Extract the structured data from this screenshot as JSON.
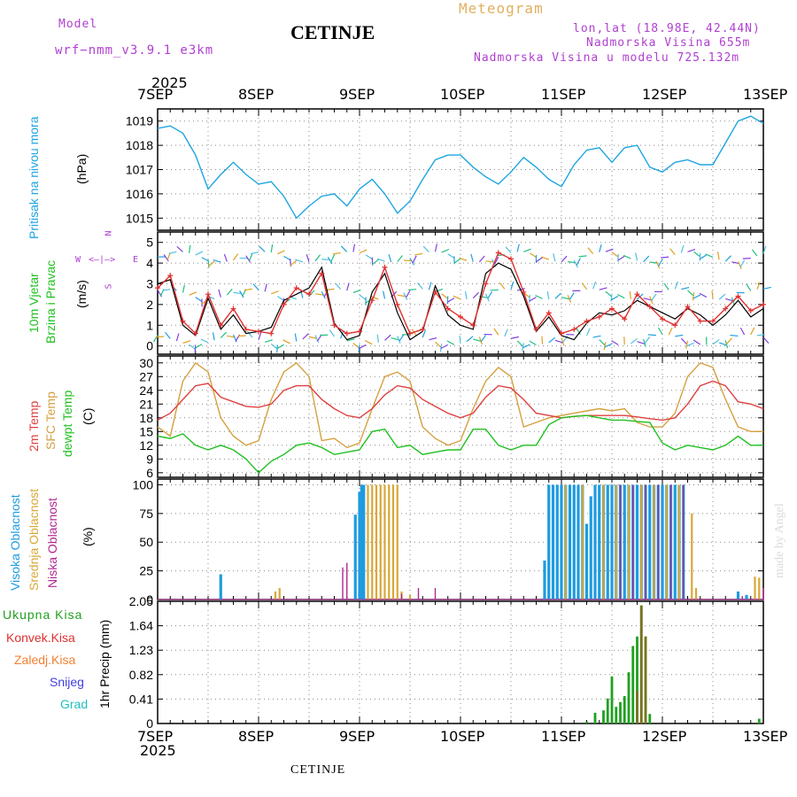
{
  "header": {
    "model_label": "Model",
    "model_name": "wrf−nmm_v3.9.1  e3km",
    "title": "CETINJE",
    "meteogram": "Meteogram",
    "lonlat": "lon,lat (18.98E, 42.44N)",
    "elev": "Nadmorska Visina 655m",
    "elev_model": "Nadmorska Visina u modelu 725.132m",
    "year": "2025"
  },
  "axis": {
    "days": [
      "7SEP",
      "8SEP",
      "9SEP",
      "10SEP",
      "11SEP",
      "12SEP",
      "13SEP"
    ],
    "year_bottom": "2025"
  },
  "labels": {
    "pressure": "Pritisak na nivou mora",
    "pressure_unit": "(hPa)",
    "wind1": "10m Vjetar",
    "wind2": "Brzina i Pravac",
    "wind_unit": "(m/s)",
    "compass": {
      "n": "N",
      "s": "S",
      "w": "W",
      "e": "E"
    },
    "t2m": "2m Temp",
    "tsfc": "SFC Temp",
    "tdew": "dewpt Temp",
    "temp_unit": "(C)",
    "cl_high": "Visoka Oblacnost",
    "cl_mid": "Srednja Oblacnost",
    "cl_low": "Niska Oblacnost",
    "cl_unit": "(%)",
    "precip_axis": "1hr Precip (mm)",
    "leg_total": "Ukupna Kisa",
    "leg_conv": "Konvek.Kisa",
    "leg_frz": "Zaledj.Kisa",
    "leg_snow": "Snijeg",
    "leg_grad": "Grad",
    "footer": "CETINJE",
    "madeby": "made by Angel"
  },
  "colors": {
    "pressure": "#1fa5e0",
    "wind_speed": "#e03030",
    "t2m": "#e04040",
    "tsfc": "#d4a040",
    "tdew": "#20c020",
    "cl_high": "#1e9be0",
    "cl_mid": "#d8a838",
    "cl_low": "#b02890",
    "precip_total": "#20a020",
    "precip_conv": "#e03030",
    "precip_frz": "#f08030",
    "precip_snow": "#4040e0",
    "precip_grad": "#20c0c0"
  },
  "chart_data": [
    {
      "type": "line",
      "title": "Sea level pressure",
      "ylabel": "Pritisak na nivou mora (hPa)",
      "ylim": [
        1014.5,
        1019.5
      ],
      "yticks": [
        1015,
        1016,
        1017,
        1018,
        1019
      ],
      "x_hours": [
        0,
        3,
        6,
        9,
        12,
        15,
        18,
        21,
        24,
        27,
        30,
        33,
        36,
        39,
        42,
        45,
        48,
        51,
        54,
        57,
        60,
        63,
        66,
        69,
        72,
        75,
        78,
        81,
        84,
        87,
        90,
        93,
        96,
        99,
        102,
        105,
        108,
        111,
        114,
        117,
        120,
        123,
        126,
        129,
        132,
        135,
        138,
        141,
        144
      ],
      "values": [
        1018.7,
        1018.8,
        1018.5,
        1017.6,
        1016.2,
        1016.8,
        1017.3,
        1016.8,
        1016.4,
        1016.5,
        1015.9,
        1015.0,
        1015.5,
        1015.9,
        1016.0,
        1015.5,
        1016.2,
        1016.6,
        1016.0,
        1015.2,
        1015.7,
        1016.6,
        1017.4,
        1017.6,
        1017.6,
        1017.1,
        1016.7,
        1016.4,
        1016.9,
        1017.5,
        1017.1,
        1016.6,
        1016.3,
        1017.2,
        1017.8,
        1017.9,
        1017.3,
        1017.9,
        1018.0,
        1017.1,
        1016.9,
        1017.3,
        1017.4,
        1017.2,
        1017.2,
        1018.1,
        1019.0,
        1019.2,
        1018.9
      ]
    },
    {
      "type": "line",
      "title": "10m wind speed",
      "ylabel": "(m/s)",
      "ylim": [
        -0.4,
        5.5
      ],
      "yticks": [
        0,
        1,
        2,
        3,
        4,
        5
      ],
      "x_hours": [
        0,
        3,
        6,
        9,
        12,
        15,
        18,
        21,
        24,
        27,
        30,
        33,
        36,
        39,
        42,
        45,
        48,
        51,
        54,
        57,
        60,
        63,
        66,
        69,
        72,
        75,
        78,
        81,
        84,
        87,
        90,
        93,
        96,
        99,
        102,
        105,
        108,
        111,
        114,
        117,
        120,
        123,
        126,
        129,
        132,
        135,
        138,
        141,
        144
      ],
      "series": [
        {
          "name": "speed",
          "values": [
            2.8,
            3.4,
            1.2,
            0.6,
            2.5,
            1.0,
            1.8,
            0.8,
            0.7,
            0.6,
            2.0,
            2.8,
            2.5,
            3.5,
            1.0,
            0.6,
            0.7,
            2.2,
            3.8,
            2.0,
            0.6,
            0.8,
            2.6,
            1.8,
            1.4,
            1.0,
            3.0,
            4.5,
            4.2,
            2.6,
            0.8,
            1.6,
            0.6,
            0.8,
            1.2,
            1.4,
            1.8,
            1.3,
            2.5,
            1.9,
            1.3,
            1.0,
            1.9,
            1.2,
            1.2,
            1.8,
            2.4,
            1.7,
            2.0
          ]
        },
        {
          "name": "gust",
          "values": [
            3.0,
            3.2,
            1.0,
            0.5,
            2.3,
            0.8,
            1.5,
            0.6,
            0.7,
            0.9,
            2.2,
            2.5,
            2.8,
            3.8,
            1.1,
            0.3,
            0.5,
            2.6,
            3.5,
            1.6,
            0.3,
            0.7,
            2.9,
            1.5,
            1.0,
            0.8,
            3.5,
            4.0,
            3.7,
            2.4,
            0.7,
            1.4,
            0.5,
            0.3,
            1.1,
            1.6,
            1.5,
            1.7,
            2.2,
            1.9,
            1.6,
            1.3,
            1.8,
            1.5,
            1.0,
            1.5,
            2.2,
            1.4,
            1.8
          ]
        }
      ]
    },
    {
      "type": "line",
      "title": "Temperatures",
      "ylabel": "(C)",
      "ylim": [
        5,
        31.5
      ],
      "yticks": [
        6,
        9,
        12,
        15,
        18,
        21,
        24,
        27,
        30
      ],
      "x_hours": [
        0,
        3,
        6,
        9,
        12,
        15,
        18,
        21,
        24,
        27,
        30,
        33,
        36,
        39,
        42,
        45,
        48,
        51,
        54,
        57,
        60,
        63,
        66,
        69,
        72,
        75,
        78,
        81,
        84,
        87,
        90,
        93,
        96,
        99,
        102,
        105,
        108,
        111,
        114,
        117,
        120,
        123,
        126,
        129,
        132,
        135,
        138,
        141,
        144
      ],
      "series": [
        {
          "name": "2m Temp",
          "values": [
            17.5,
            19.0,
            22.0,
            25.0,
            25.5,
            22.5,
            21.5,
            20.5,
            20.3,
            21.0,
            24.0,
            25.0,
            25.0,
            22.0,
            20.0,
            18.5,
            18.0,
            20.0,
            23.0,
            25.0,
            24.5,
            22.0,
            20.5,
            19.0,
            18.0,
            19.0,
            22.5,
            25.0,
            24.5,
            22.0,
            19.0,
            18.5,
            18.0,
            18.3,
            18.5,
            18.5,
            18.5,
            18.5,
            18.2,
            17.8,
            17.5,
            18.0,
            21.0,
            25.0,
            26.0,
            25.0,
            21.5,
            21.0,
            20.0
          ]
        },
        {
          "name": "SFC Temp",
          "values": [
            16.0,
            14.0,
            26.0,
            30.0,
            28.0,
            18.0,
            14.0,
            12.0,
            13.0,
            22.0,
            28.0,
            30.0,
            27.0,
            13.0,
            13.5,
            11.5,
            12.5,
            20.0,
            27.0,
            28.0,
            26.0,
            16.0,
            13.5,
            12.0,
            13.0,
            20.0,
            26.0,
            29.0,
            27.0,
            16.0,
            17.0,
            18.0,
            18.5,
            19.0,
            19.5,
            20.0,
            19.5,
            20.0,
            17.0,
            16.0,
            16.0,
            19.0,
            27.0,
            30.0,
            29.0,
            22.0,
            16.0,
            15.0,
            15.0
          ]
        },
        {
          "name": "dewpt Temp",
          "values": [
            14.0,
            13.5,
            14.5,
            12.0,
            11.0,
            12.0,
            11.0,
            9.0,
            6.0,
            8.5,
            10.0,
            12.0,
            12.5,
            11.5,
            10.0,
            10.5,
            11.0,
            15.0,
            15.5,
            11.5,
            12.0,
            10.0,
            10.5,
            11.0,
            11.0,
            15.5,
            15.5,
            12.0,
            11.0,
            12.0,
            12.0,
            16.5,
            18.0,
            18.3,
            18.5,
            18.0,
            17.5,
            17.5,
            17.2,
            17.0,
            12.5,
            11.0,
            12.0,
            11.5,
            11.0,
            12.0,
            14.0,
            12.0,
            12.0
          ]
        }
      ]
    },
    {
      "type": "bar",
      "title": "Cloud cover",
      "ylabel": "(%)",
      "ylim": [
        0,
        105
      ],
      "yticks": [
        0,
        25,
        50,
        75,
        100
      ],
      "series": [
        {
          "name": "Visoka Oblacnost",
          "bars": [
            [
              15,
              22
            ],
            [
              47,
              74
            ],
            [
              48,
              94
            ],
            [
              48.5,
              100
            ],
            [
              49,
              100
            ],
            [
              92,
              34
            ],
            [
              93,
              100
            ],
            [
              94,
              100
            ],
            [
              95,
              100
            ],
            [
              96,
              100
            ],
            [
              97,
              100
            ],
            [
              98,
              100
            ],
            [
              99,
              100
            ],
            [
              100,
              100
            ],
            [
              101,
              100
            ],
            [
              102,
              66
            ],
            [
              103,
              90
            ],
            [
              104,
              100
            ],
            [
              105,
              100
            ],
            [
              106,
              100
            ],
            [
              107,
              100
            ],
            [
              108,
              100
            ],
            [
              109,
              100
            ],
            [
              110,
              100
            ],
            [
              111,
              100
            ],
            [
              112,
              100
            ],
            [
              113,
              100
            ],
            [
              114,
              100
            ],
            [
              115,
              100
            ],
            [
              116,
              100
            ],
            [
              117,
              100
            ],
            [
              118,
              100
            ],
            [
              119,
              100
            ],
            [
              120,
              100
            ],
            [
              121,
              100
            ],
            [
              122,
              100
            ],
            [
              123,
              100
            ],
            [
              124,
              100
            ],
            [
              125,
              100
            ],
            [
              138,
              7
            ],
            [
              140,
              4
            ]
          ]
        },
        {
          "name": "Srednja Oblacnost",
          "bars": [
            [
              28,
              7
            ],
            [
              29,
              10
            ],
            [
              50,
              100
            ],
            [
              51,
              100
            ],
            [
              52,
              100
            ],
            [
              53,
              100
            ],
            [
              54,
              100
            ],
            [
              55,
              100
            ],
            [
              56,
              100
            ],
            [
              57,
              100
            ],
            [
              58,
              7
            ],
            [
              60,
              4
            ],
            [
              97,
              100
            ],
            [
              101,
              100
            ],
            [
              106,
              100
            ],
            [
              109,
              100
            ],
            [
              112,
              100
            ],
            [
              115,
              100
            ],
            [
              118,
              100
            ],
            [
              121,
              100
            ],
            [
              124,
              100
            ],
            [
              127,
              75
            ],
            [
              128,
              10
            ],
            [
              142,
              20
            ],
            [
              143,
              19
            ]
          ]
        },
        {
          "name": "Niska Oblacnost",
          "bars": [
            [
              44,
              28
            ],
            [
              45,
              32
            ],
            [
              58,
              5
            ],
            [
              62,
              10
            ],
            [
              66,
              10
            ],
            [
              110,
              100
            ],
            [
              113,
              100
            ],
            [
              116,
              100
            ],
            [
              119,
              100
            ],
            [
              122,
              100
            ],
            [
              125,
              100
            ],
            [
              139,
              3
            ],
            [
              144,
              10
            ]
          ]
        }
      ]
    },
    {
      "type": "bar",
      "title": "1hr Precip",
      "ylabel": "1hr Precip (mm)",
      "ylim": [
        0,
        2.05
      ],
      "yticks": [
        0,
        0.41,
        0.82,
        1.23,
        1.64,
        2.05
      ],
      "ytick_labels": [
        "0",
        "0.41",
        "0.82",
        "1.23",
        "1.64",
        "2.05"
      ],
      "series": [
        {
          "name": "Ukupna Kisa",
          "bars": [
            [
              102,
              0.03
            ],
            [
              104,
              0.18
            ],
            [
              106,
              0.22
            ],
            [
              107,
              0.42
            ],
            [
              108,
              0.79
            ],
            [
              109,
              0.28
            ],
            [
              110,
              0.36
            ],
            [
              111,
              0.46
            ],
            [
              112,
              0.86
            ],
            [
              113,
              1.3
            ],
            [
              114,
              1.46
            ],
            [
              115,
              1.98
            ],
            [
              116,
              1.46
            ],
            [
              117,
              0.16
            ],
            [
              143,
              0.08
            ]
          ]
        },
        {
          "name": "Konvek.Kisa",
          "bars": [
            [
              114,
              0.55
            ],
            [
              115,
              1.98
            ],
            [
              116,
              1.46
            ]
          ]
        }
      ]
    }
  ]
}
